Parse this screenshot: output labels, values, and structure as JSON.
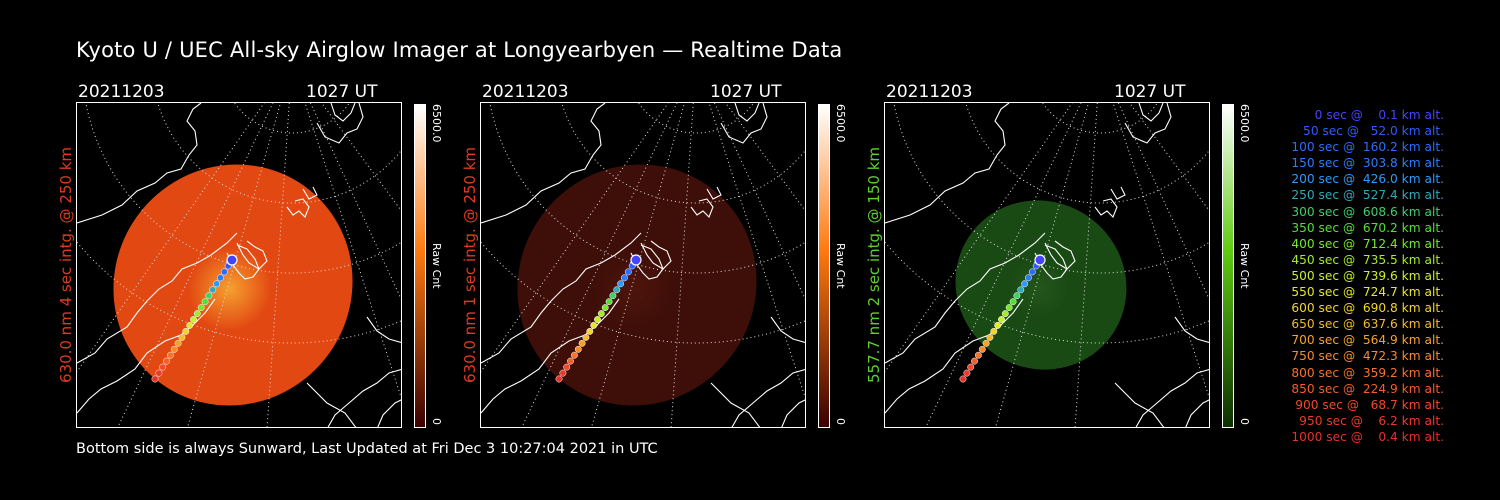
{
  "title": "Kyoto U / UEC All-sky Airglow Imager at Longyearbyen — Realtime Data",
  "footer": "Bottom side is always Sunward, Last Updated at Fri Dec  3 10:27:04 2021 in UTC",
  "panels": [
    {
      "date": "20211203",
      "time": "1027 UT",
      "label": "630.0 nm 4 sec intg. @ 250 km",
      "label_color": "#e03a1e",
      "cbar_max": "6500.0",
      "cbar_min": "0",
      "cbar_unit": "Raw Cnt",
      "cbar_top": "#ffffff",
      "cbar_mid": "#ff7a10",
      "cbar_bottom": "#3a0000",
      "disk_color": "#e24812",
      "disk_glow": "#f5a030",
      "disk_scale": 1.0
    },
    {
      "date": "20211203",
      "time": "1027 UT",
      "label": "630.0 nm 1 sec intg. @ 250 km",
      "label_color": "#e03a1e",
      "cbar_max": "6500.0",
      "cbar_min": "0",
      "cbar_unit": "Raw Cnt",
      "cbar_top": "#ffffff",
      "cbar_mid": "#ff7a10",
      "cbar_bottom": "#3a0000",
      "disk_color": "#3e0e08",
      "disk_glow": "#4e150c",
      "disk_scale": 1.0
    },
    {
      "date": "20211203",
      "time": "1027 UT",
      "label": "557.7 nm 2 sec intg. @ 150 km",
      "label_color": "#5fd02a",
      "cbar_max": "6500.0",
      "cbar_min": "0",
      "cbar_unit": "Raw Cnt",
      "cbar_top": "#ffffff",
      "cbar_mid": "#5fcc10",
      "cbar_bottom": "#0a3000",
      "disk_color": "#1a4a14",
      "disk_glow": "#23561b",
      "disk_scale": 0.6
    }
  ],
  "legend": [
    {
      "text": "   0 sec @    0.1 km alt.",
      "color": "#4444ff"
    },
    {
      "text": "  50 sec @   52.0 km alt.",
      "color": "#2f5bff"
    },
    {
      "text": " 100 sec @  160.2 km alt.",
      "color": "#2d6cff"
    },
    {
      "text": " 150 sec @  303.8 km alt.",
      "color": "#2d7cff"
    },
    {
      "text": " 200 sec @  426.0 km alt.",
      "color": "#2d9aff"
    },
    {
      "text": " 250 sec @  527.4 km alt.",
      "color": "#32a8b8"
    },
    {
      "text": " 300 sec @  608.6 km alt.",
      "color": "#3ed06a"
    },
    {
      "text": " 350 sec @  670.2 km alt.",
      "color": "#52e035"
    },
    {
      "text": " 400 sec @  712.4 km alt.",
      "color": "#76e82c"
    },
    {
      "text": " 450 sec @  735.5 km alt.",
      "color": "#a4ec2a"
    },
    {
      "text": " 500 sec @  739.6 km alt.",
      "color": "#c8ef2a"
    },
    {
      "text": " 550 sec @  724.7 km alt.",
      "color": "#e4e82a"
    },
    {
      "text": " 600 sec @  690.8 km alt.",
      "color": "#f3d42a"
    },
    {
      "text": " 650 sec @  637.6 km alt.",
      "color": "#f5bb2a"
    },
    {
      "text": " 700 sec @  564.9 km alt.",
      "color": "#f6a22a"
    },
    {
      "text": " 750 sec @  472.3 km alt.",
      "color": "#f78a2a"
    },
    {
      "text": " 800 sec @  359.2 km alt.",
      "color": "#f7732a"
    },
    {
      "text": " 850 sec @  224.9 km alt.",
      "color": "#f55e2a"
    },
    {
      "text": " 900 sec @   68.7 km alt.",
      "color": "#f04a2a"
    },
    {
      "text": " 950 sec @    6.2 km alt.",
      "color": "#ec3a2a"
    },
    {
      "text": "1000 sec @    0.4 km alt.",
      "color": "#e6302a"
    }
  ]
}
